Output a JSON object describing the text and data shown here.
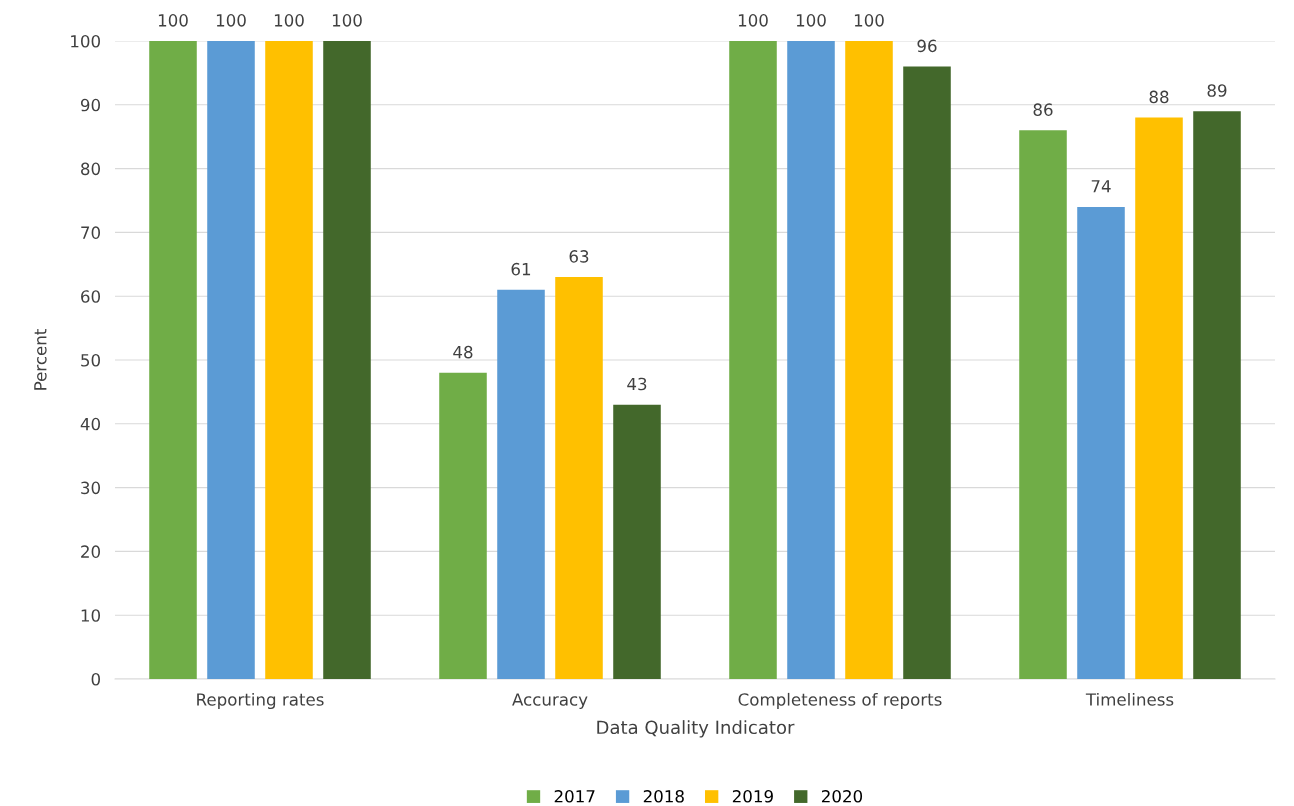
{
  "chart_data": {
    "type": "bar",
    "xlabel": "Data Quality Indicator",
    "ylabel": "Percent",
    "categories": [
      "Reporting rates",
      "Accuracy",
      "Completeness of reports",
      "Timeliness"
    ],
    "series": [
      {
        "name": "2017",
        "color": "#70ad47",
        "values": [
          100,
          48,
          100,
          86
        ]
      },
      {
        "name": "2018",
        "color": "#5b9bd5",
        "values": [
          100,
          61,
          100,
          74
        ]
      },
      {
        "name": "2019",
        "color": "#ffc000",
        "values": [
          100,
          63,
          100,
          88
        ]
      },
      {
        "name": "2020",
        "color": "#43682b",
        "values": [
          100,
          43,
          96,
          89
        ]
      }
    ],
    "ylim": [
      0,
      100
    ],
    "yticks": [
      0,
      10,
      20,
      30,
      40,
      50,
      60,
      70,
      80,
      90,
      100
    ],
    "grid": "y",
    "legend": "bottom",
    "data_labels": true
  }
}
